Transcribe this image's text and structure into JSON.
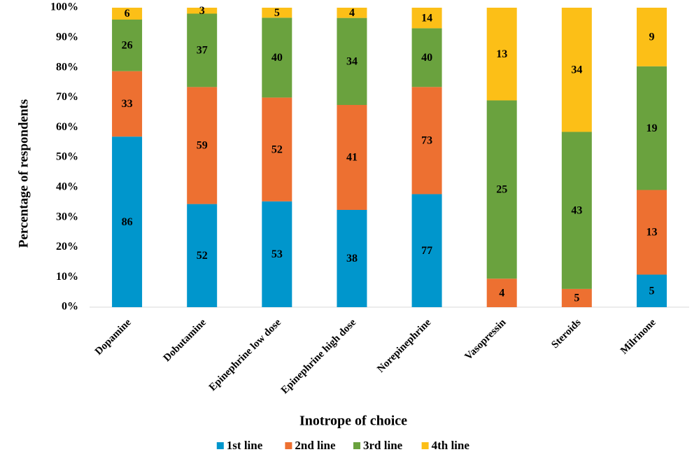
{
  "chart_data": {
    "type": "bar",
    "stacking": "percent",
    "ylabel": "Percentage  of respondents",
    "xlabel": "Inotrope of choice",
    "categories": [
      "Dopamine",
      "Dobutamine",
      "Epinephrine low dose",
      "Epinephrine high dose",
      "Norepinephrine",
      "Vasopressin",
      "Steroids",
      "Milrinone"
    ],
    "series": [
      {
        "name": "1st line",
        "color": "#0096cc",
        "values": [
          86,
          52,
          53,
          38,
          77,
          null,
          null,
          5
        ]
      },
      {
        "name": "2nd line",
        "color": "#ed7031",
        "values": [
          33,
          59,
          52,
          41,
          73,
          4,
          5,
          13
        ]
      },
      {
        "name": "3rd line",
        "color": "#6aa23e",
        "values": [
          26,
          37,
          40,
          34,
          40,
          25,
          43,
          19
        ]
      },
      {
        "name": "4th line",
        "color": "#fcbf17",
        "values": [
          6,
          3,
          5,
          4,
          14,
          13,
          34,
          9
        ]
      }
    ],
    "ylim": [
      0,
      100
    ],
    "yticks": [
      {
        "value": 0,
        "label": "0%"
      },
      {
        "value": 10,
        "label": "10%"
      },
      {
        "value": 20,
        "label": "20%"
      },
      {
        "value": 30,
        "label": "30%"
      },
      {
        "value": 40,
        "label": "40%"
      },
      {
        "value": 50,
        "label": "50%"
      },
      {
        "value": 60,
        "label": "60%"
      },
      {
        "value": 70,
        "label": "70%"
      },
      {
        "value": 80,
        "label": "80%"
      },
      {
        "value": 90,
        "label": "90%"
      },
      {
        "value": 100,
        "label": "100%"
      }
    ],
    "legend": "bottom"
  }
}
